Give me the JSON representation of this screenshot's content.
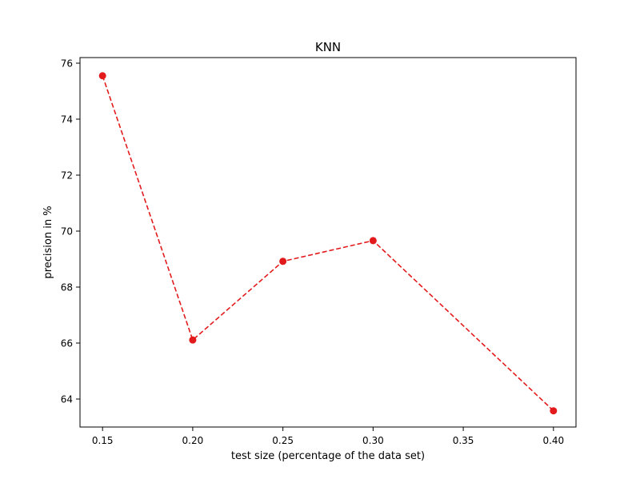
{
  "chart_data": {
    "type": "line",
    "title": "KNN",
    "xlabel": "test size (percentage of the data set)",
    "ylabel": "precision in %",
    "xlim": [
      0.1375,
      0.4125
    ],
    "ylim": [
      63.0,
      76.2
    ],
    "xticks": [
      0.15,
      0.2,
      0.25,
      0.3,
      0.35,
      0.4
    ],
    "xtick_labels": [
      "0.15",
      "0.20",
      "0.25",
      "0.30",
      "0.35",
      "0.40"
    ],
    "yticks": [
      64,
      66,
      68,
      70,
      72,
      74,
      76
    ],
    "ytick_labels": [
      "64",
      "66",
      "68",
      "70",
      "72",
      "74",
      "76"
    ],
    "grid": false,
    "series": [
      {
        "color": "#e31a1c",
        "line_style": "dashed",
        "marker": "circle",
        "x": [
          0.15,
          0.2,
          0.25,
          0.3,
          0.4
        ],
        "y": [
          75.55,
          66.11,
          68.92,
          69.66,
          63.58
        ]
      }
    ]
  }
}
